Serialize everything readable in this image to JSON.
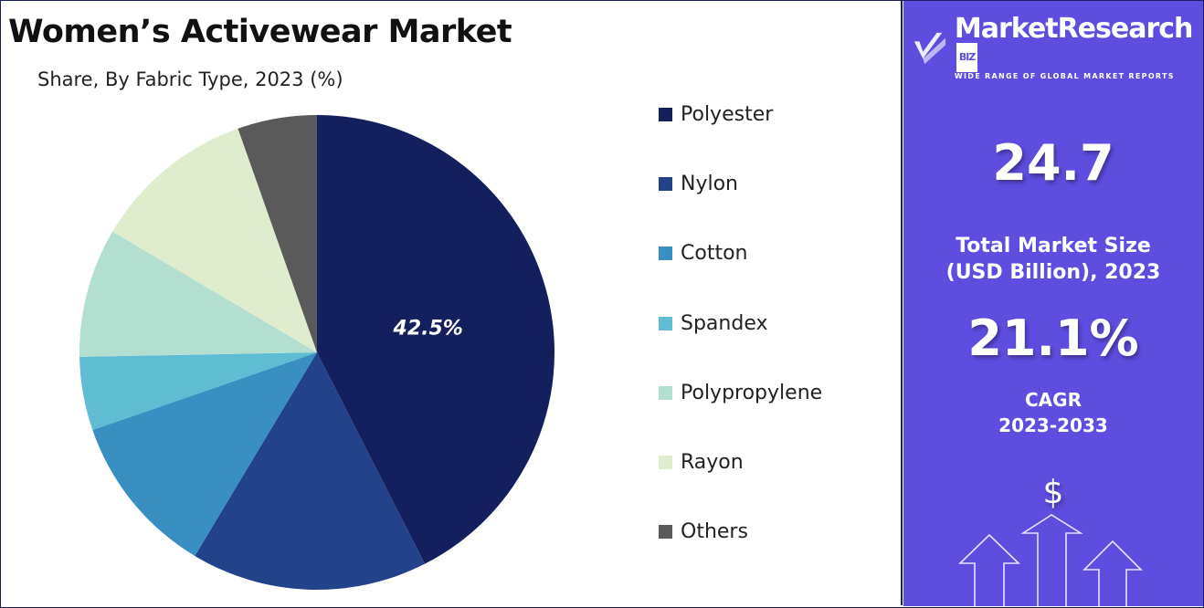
{
  "chart_data": {
    "type": "pie",
    "title": "Women’s Activewear Market",
    "subtitle": "Share, By Fabric Type, 2023 (%)",
    "categories": [
      "Polyester",
      "Nylon",
      "Cotton",
      "Spandex",
      "Polypropylene",
      "Rayon",
      "Others"
    ],
    "values": [
      42.5,
      16.1,
      11.1,
      5.0,
      8.8,
      11.1,
      5.4
    ],
    "colors": [
      "#141f5e",
      "#22428a",
      "#3a8fc2",
      "#5fbcd3",
      "#b3dfd1",
      "#dfecce",
      "#5a5a5a"
    ],
    "data_labels": [
      {
        "category": "Polyester",
        "text": "42.5%"
      }
    ],
    "legend_placement": "right",
    "start": "top, clockwise"
  },
  "panel": {
    "brand": "MarketResearch",
    "brand_suffix": "BIZ",
    "tagline": "WIDE RANGE OF GLOBAL MARKET REPORTS",
    "market_size": "24.7",
    "market_size_label_1": "Total Market Size",
    "market_size_label_2": "(USD Billion), 2023",
    "cagr": "21.1%",
    "cagr_label_1": "CAGR",
    "cagr_label_2": "2023-2033",
    "dollar": "$",
    "accent": "#5f4de0",
    "icons": [
      "checkmark-logo-icon",
      "dollar-icon",
      "growth-arrows-icon"
    ]
  }
}
